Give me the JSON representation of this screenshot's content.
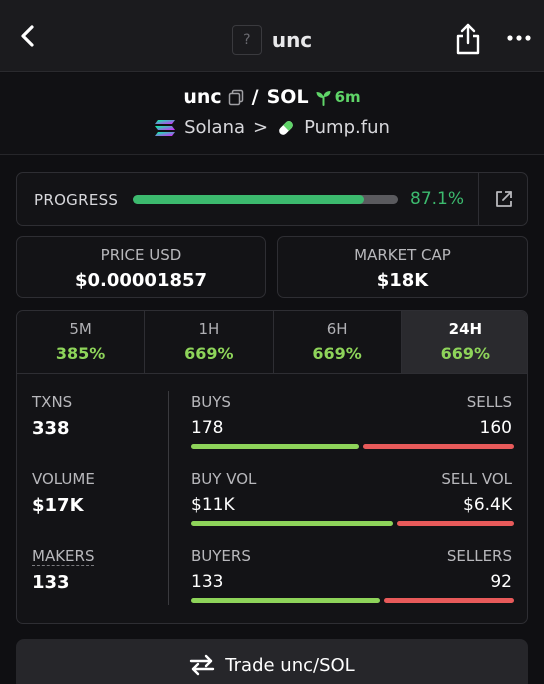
{
  "nav": {
    "title": "unc",
    "token_icon_glyph": "?",
    "icons": {
      "back": "chevron-left-icon",
      "share": "share-icon",
      "more": "more-horizontal-icon"
    }
  },
  "pair": {
    "base": "unc",
    "separator": "/",
    "quote": "SOL",
    "age": "6m",
    "chain": "Solana",
    "chevron": ">",
    "dex": "Pump.fun",
    "colors": {
      "age": "#5fd468"
    }
  },
  "progress": {
    "label": "PROGRESS",
    "value_text": "87.1%",
    "fraction": 0.871,
    "color": "#3cba6e"
  },
  "price": {
    "label": "PRICE USD",
    "value": "$0.00001857"
  },
  "market_cap": {
    "label": "MARKET CAP",
    "value": "$18K"
  },
  "tabs": [
    {
      "name": "5M",
      "value": "385%"
    },
    {
      "name": "1H",
      "value": "669%"
    },
    {
      "name": "6H",
      "value": "669%"
    },
    {
      "name": "24H",
      "value": "669%",
      "active": true
    }
  ],
  "stats": {
    "txns": {
      "label": "TXNS",
      "value": "338"
    },
    "volume": {
      "label": "VOLUME",
      "value": "$17K"
    },
    "makers": {
      "label": "MAKERS",
      "value": "133"
    },
    "buys": {
      "label_left": "BUYS",
      "label_right": "SELLS",
      "left": "178",
      "right": "160",
      "left_num": 178,
      "right_num": 160
    },
    "buy_vol": {
      "label_left": "BUY VOL",
      "label_right": "SELL VOL",
      "left": "$11K",
      "right": "$6.4K",
      "left_num": 11,
      "right_num": 6.4
    },
    "buyers": {
      "label_left": "BUYERS",
      "label_right": "SELLERS",
      "left": "133",
      "right": "92",
      "left_num": 133,
      "right_num": 92
    },
    "colors": {
      "buy": "#8ed45a",
      "sell": "#e85a5a"
    }
  },
  "trade": {
    "label": "Trade unc/SOL",
    "icon": "swap-arrows-icon"
  }
}
